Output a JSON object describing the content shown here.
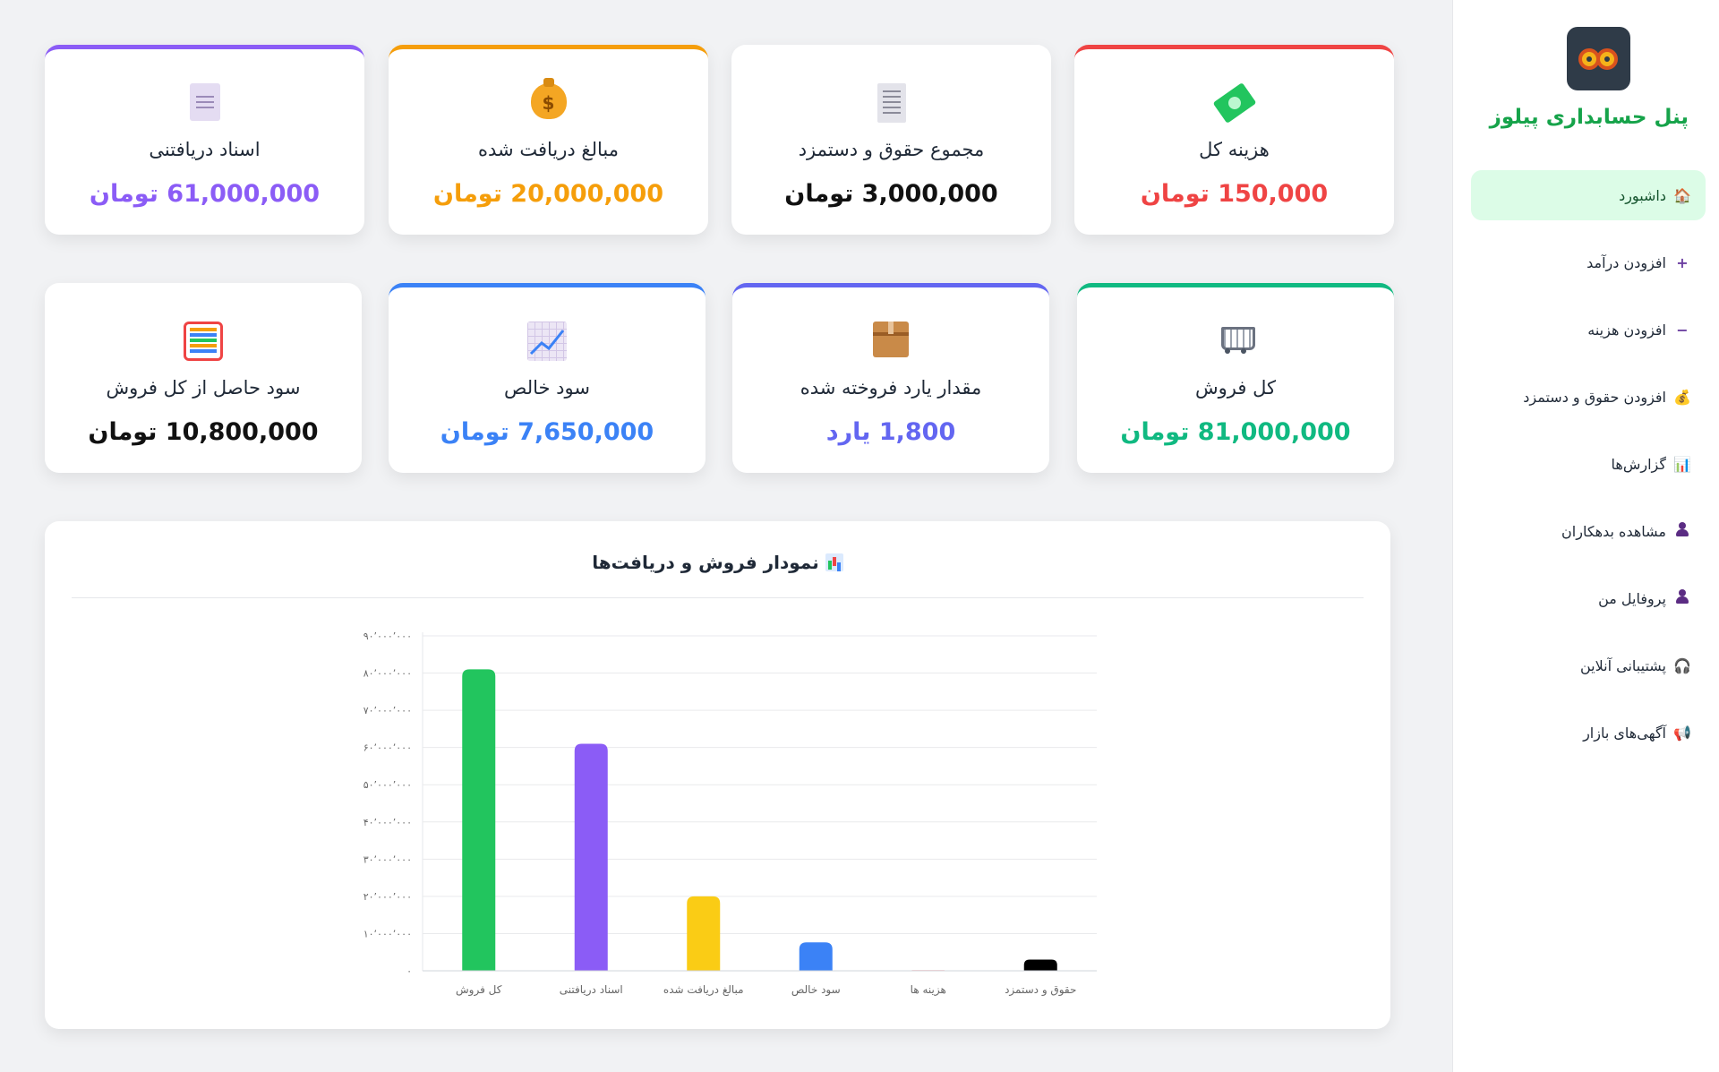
{
  "sidebar": {
    "brand": "پنل حسابداری پیلوز",
    "items": [
      {
        "label": "داشبورد",
        "icon": "house-icon",
        "active": true
      },
      {
        "label": "افزودن درآمد",
        "icon": "plus-icon"
      },
      {
        "label": "افزودن هزینه",
        "icon": "minus-icon"
      },
      {
        "label": "افزودن حقوق و دستمزد",
        "icon": "money-bag-icon"
      },
      {
        "label": "گزارش‌ها",
        "icon": "bar-chart-icon"
      },
      {
        "label": "مشاهده بدهکاران",
        "icon": "user-icon"
      },
      {
        "label": "پروفایل من",
        "icon": "user-icon"
      },
      {
        "label": "پشتیبانی آنلاین",
        "icon": "headphones-icon"
      },
      {
        "label": "آگهی‌های بازار",
        "icon": "megaphone-icon"
      }
    ]
  },
  "cards": [
    {
      "title": "هزینه کل",
      "value": "150,000",
      "unit": "تومان",
      "color": "#ef4444",
      "icon": "money-icon"
    },
    {
      "title": "مجموع حقوق و دستمزد",
      "value": "3,000,000",
      "unit": "تومان",
      "color": "#111111",
      "icon": "receipt-icon"
    },
    {
      "title": "مبالغ دریافت شده",
      "value": "20,000,000",
      "unit": "تومان",
      "color": "#f59e0b",
      "icon": "money-bag-icon"
    },
    {
      "title": "اسناد دریافتنی",
      "value": "61,000,000",
      "unit": "تومان",
      "color": "#8b5cf6",
      "icon": "document-icon"
    },
    {
      "title": "کل فروش",
      "value": "81,000,000",
      "unit": "تومان",
      "color": "#10b981",
      "icon": "cart-icon"
    },
    {
      "title": "مقدار یارد فروخته شده",
      "value": "1,800",
      "unit": "یارد",
      "color": "#6366f1",
      "icon": "package-icon"
    },
    {
      "title": "سود خالص",
      "value": "7,650,000",
      "unit": "تومان",
      "color": "#3b82f6",
      "icon": "trend-up-icon"
    },
    {
      "title": "سود حاصل از کل فروش",
      "value": "10,800,000",
      "unit": "تومان",
      "color": "#111111",
      "icon": "abacus-icon"
    }
  ],
  "chart_title": "نمودار فروش و دریافت‌ها",
  "chart_data": {
    "type": "bar",
    "title": "نمودار فروش و دریافت‌ها",
    "categories": [
      "کل فروش",
      "اسناد دریافتنی",
      "مبالغ دریافت شده",
      "سود خالص",
      "هزینه ها",
      "حقوق و دستمزد"
    ],
    "values": [
      81000000,
      61000000,
      20000000,
      7650000,
      150000,
      3000000
    ],
    "colors": [
      "#22c55e",
      "#8b5cf6",
      "#facc15",
      "#3b82f6",
      "#ef4444",
      "#000000"
    ],
    "ylim": [
      0,
      90000000
    ],
    "yticks": [
      "۰",
      "۱۰٬۰۰۰٬۰۰۰",
      "۲۰٬۰۰۰٬۰۰۰",
      "۳۰٬۰۰۰٬۰۰۰",
      "۴۰٬۰۰۰٬۰۰۰",
      "۵۰٬۰۰۰٬۰۰۰",
      "۶۰٬۰۰۰٬۰۰۰",
      "۷۰٬۰۰۰٬۰۰۰",
      "۸۰٬۰۰۰٬۰۰۰",
      "۹۰٬۰۰۰٬۰۰۰"
    ],
    "grid": true,
    "xlabel": "",
    "ylabel": ""
  }
}
